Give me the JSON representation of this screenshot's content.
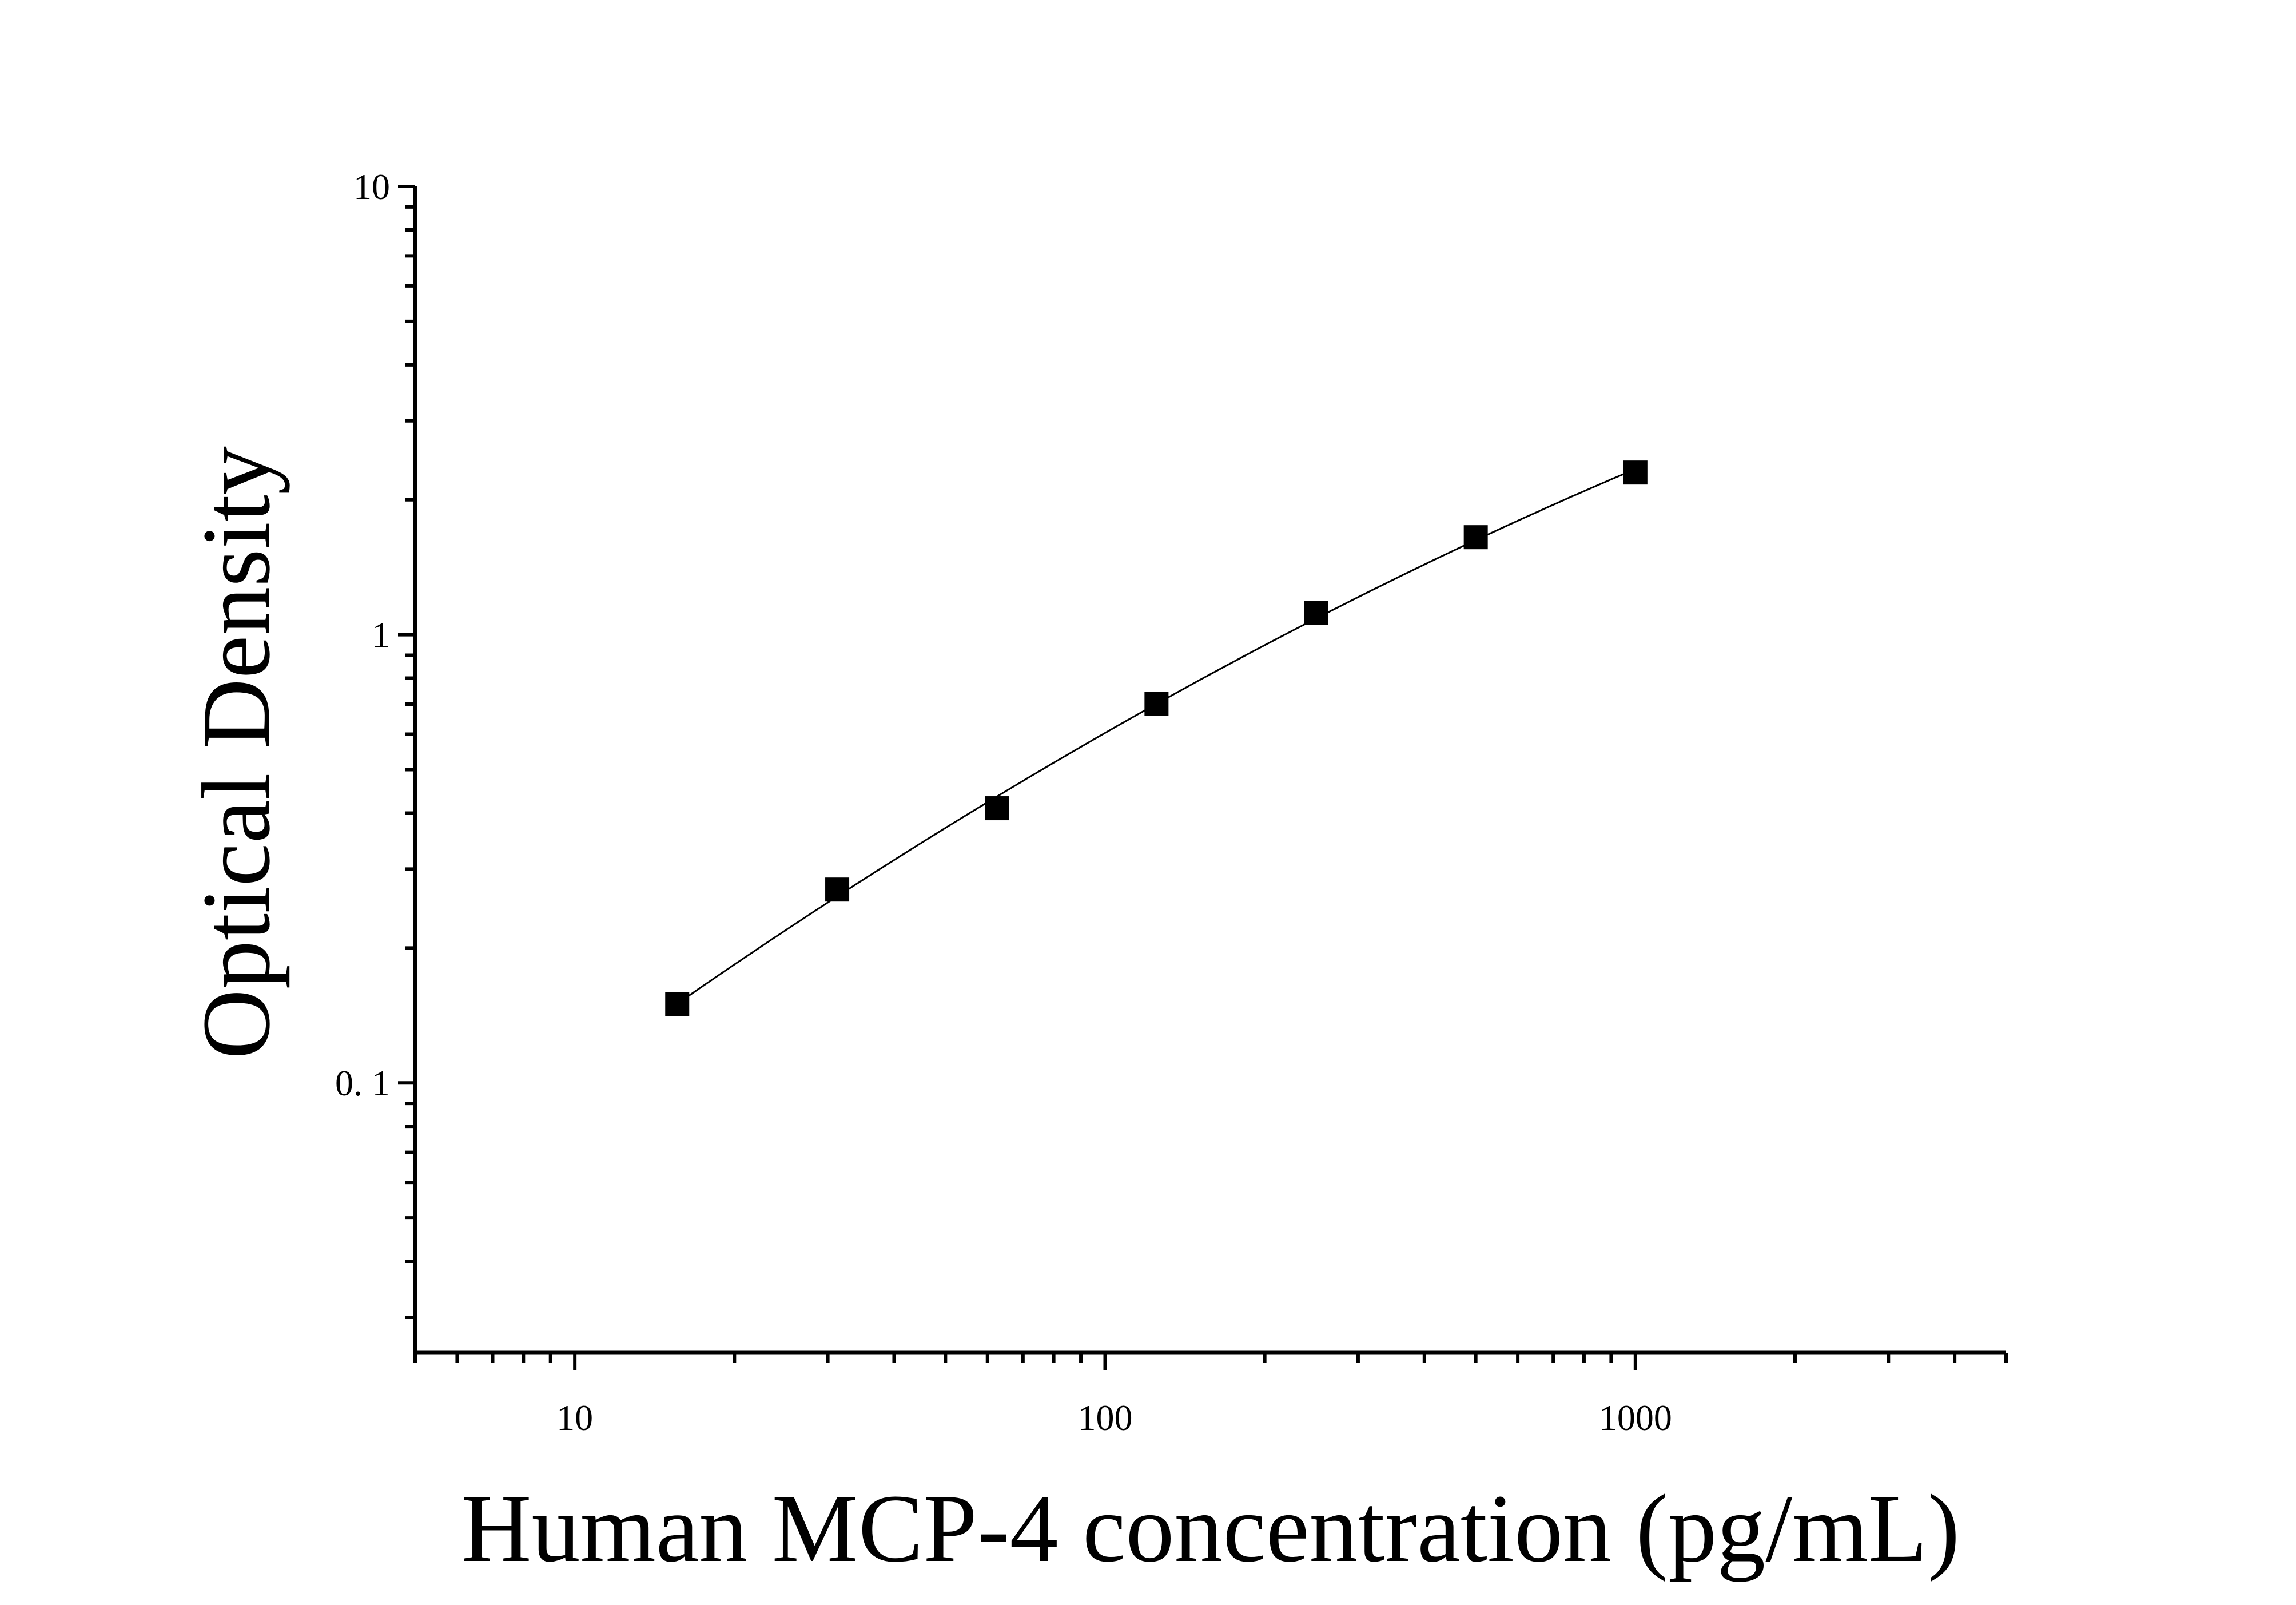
{
  "chart_data": {
    "type": "scatter",
    "title": "",
    "xlabel": "Human MCP-4 concentration (pg/mL)",
    "ylabel": "Optical Density",
    "x_scale": "log",
    "y_scale": "log",
    "xlim": [
      5,
      5000
    ],
    "ylim": [
      0.025,
      10
    ],
    "x_ticks": [
      {
        "value": 10,
        "label": "10"
      },
      {
        "value": 100,
        "label": "100"
      },
      {
        "value": 1000,
        "label": "1000"
      }
    ],
    "y_ticks": [
      {
        "value": 0.1,
        "label": "0. 1"
      },
      {
        "value": 1,
        "label": "1"
      },
      {
        "value": 10,
        "label": "10"
      }
    ],
    "grid": false,
    "legend": "none",
    "series": [
      {
        "marker": "square",
        "color": "#000000",
        "points": [
          {
            "x": 15.6,
            "y": 0.15
          },
          {
            "x": 31.25,
            "y": 0.27
          },
          {
            "x": 62.5,
            "y": 0.41
          },
          {
            "x": 125,
            "y": 0.7
          },
          {
            "x": 250,
            "y": 1.12
          },
          {
            "x": 500,
            "y": 1.65
          },
          {
            "x": 1000,
            "y": 2.3
          }
        ]
      }
    ],
    "fit_curve": {
      "type": "smooth",
      "color": "#000000"
    }
  }
}
